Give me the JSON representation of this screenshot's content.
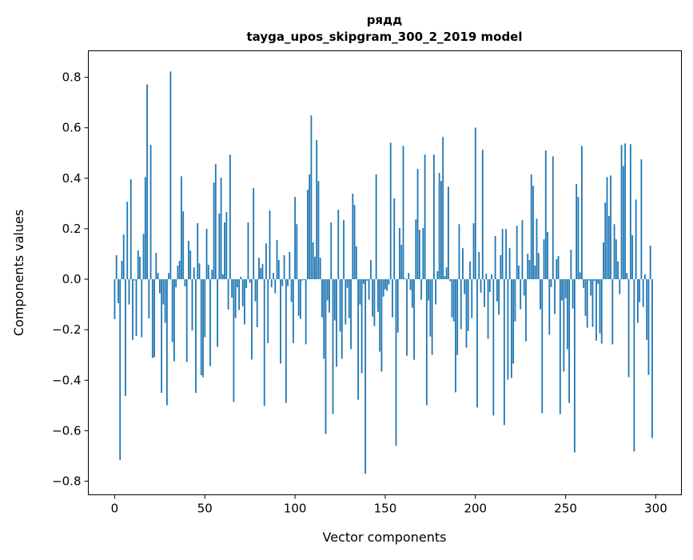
{
  "chart_data": {
    "type": "bar",
    "title": [
      "рядд",
      "tayga_upos_skipgram_300_2_2019 model"
    ],
    "xlabel": "Vector components",
    "ylabel": "Components values",
    "xlim": [
      -14.6,
      314.2
    ],
    "ylim": [
      -0.854,
      0.905
    ],
    "xticks": [
      0,
      50,
      100,
      150,
      200,
      250,
      300
    ],
    "yticks": [
      -0.8,
      -0.6,
      -0.4,
      -0.2,
      0.0,
      0.2,
      0.4,
      0.6,
      0.8
    ],
    "xtick_labels": [
      "0",
      "50",
      "100",
      "150",
      "200",
      "250",
      "300"
    ],
    "ytick_labels": [
      "−0.8",
      "−0.6",
      "−0.4",
      "−0.2",
      "0.0",
      "0.2",
      "0.4",
      "0.6",
      "0.8"
    ],
    "grid": false,
    "bar_color": "#1f77b4",
    "values": [
      -0.158,
      0.095,
      -0.095,
      -0.717,
      0.073,
      0.177,
      -0.462,
      0.307,
      -0.1,
      0.396,
      -0.24,
      -0.005,
      -0.225,
      0.114,
      0.089,
      -0.23,
      0.18,
      0.405,
      0.772,
      -0.155,
      0.532,
      -0.312,
      -0.309,
      0.104,
      0.025,
      -0.056,
      -0.45,
      -0.1,
      -0.173,
      -0.499,
      0.025,
      0.823,
      -0.249,
      -0.325,
      -0.032,
      0.054,
      0.073,
      0.408,
      0.269,
      -0.028,
      -0.328,
      0.152,
      0.114,
      -0.203,
      0.047,
      -0.45,
      0.222,
      0.063,
      -0.38,
      -0.388,
      -0.23,
      0.2,
      0.057,
      -0.344,
      0.038,
      0.383,
      0.456,
      -0.268,
      0.26,
      0.402,
      0.019,
      0.225,
      0.266,
      -0.12,
      0.494,
      -0.073,
      -0.486,
      -0.154,
      -0.032,
      -0.122,
      0.01,
      -0.107,
      -0.179,
      -0.035,
      0.225,
      -0.013,
      -0.318,
      0.361,
      -0.088,
      -0.19,
      0.085,
      0.044,
      0.06,
      -0.502,
      0.142,
      -0.253,
      0.272,
      -0.032,
      0.025,
      -0.056,
      0.155,
      0.076,
      -0.334,
      -0.027,
      0.095,
      -0.49,
      -0.027,
      0.108,
      -0.09,
      -0.253,
      0.326,
      0.218,
      -0.145,
      -0.157,
      -0.005,
      -0.003,
      -0.258,
      0.354,
      0.415,
      0.649,
      0.146,
      0.089,
      0.551,
      0.389,
      0.085,
      -0.151,
      -0.315,
      -0.613,
      -0.084,
      -0.132,
      0.225,
      -0.534,
      -0.163,
      -0.347,
      0.275,
      -0.208,
      -0.315,
      0.234,
      -0.179,
      -0.034,
      -0.154,
      -0.277,
      0.339,
      0.294,
      0.13,
      -0.477,
      -0.1,
      -0.372,
      -0.019,
      -0.771,
      -0.006,
      -0.081,
      0.076,
      -0.148,
      -0.186,
      0.415,
      -0.129,
      -0.287,
      -0.366,
      -0.069,
      -0.04,
      -0.046,
      -0.021,
      0.541,
      -0.151,
      0.32,
      -0.66,
      -0.211,
      0.203,
      0.136,
      0.528,
      0.003,
      -0.303,
      0.025,
      -0.043,
      -0.113,
      -0.319,
      0.237,
      0.437,
      0.196,
      -0.081,
      0.203,
      0.494,
      -0.499,
      -0.084,
      -0.227,
      -0.3,
      0.494,
      -0.1,
      0.032,
      0.421,
      0.389,
      0.563,
      0.013,
      0.047,
      0.367,
      -0.008,
      -0.151,
      -0.167,
      -0.448,
      -0.3,
      0.218,
      -0.198,
      0.123,
      -0.059,
      -0.271,
      -0.205,
      0.07,
      -0.154,
      0.222,
      0.601,
      -0.508,
      0.108,
      -0.053,
      0.513,
      -0.11,
      0.022,
      -0.236,
      -0.05,
      0.019,
      -0.54,
      0.171,
      -0.088,
      -0.141,
      0.095,
      0.199,
      -0.578,
      0.199,
      -0.398,
      0.123,
      -0.391,
      -0.334,
      -0.167,
      0.212,
      0.054,
      -0.119,
      0.234,
      -0.065,
      -0.246,
      0.101,
      0.076,
      0.415,
      0.37,
      0.054,
      0.24,
      0.104,
      -0.119,
      -0.531,
      0.158,
      0.51,
      0.187,
      -0.22,
      -0.031,
      0.487,
      -0.138,
      0.079,
      0.092,
      -0.534,
      -0.084,
      -0.366,
      -0.075,
      -0.277,
      -0.49,
      0.117,
      -0.116,
      -0.686,
      0.377,
      0.326,
      0.028,
      0.528,
      -0.034,
      -0.145,
      -0.192,
      -0.005,
      -0.065,
      -0.189,
      -0.006,
      -0.243,
      -0.018,
      -0.214,
      -0.255,
      0.146,
      0.304,
      0.405,
      0.25,
      0.411,
      -0.258,
      0.218,
      0.158,
      0.07,
      -0.059,
      0.532,
      0.449,
      0.538,
      0.025,
      -0.388,
      0.535,
      0.174,
      -0.682,
      0.316,
      -0.173,
      -0.091,
      0.475,
      -0.11,
      0.019,
      -0.24,
      -0.379,
      0.133,
      -0.629
    ]
  }
}
